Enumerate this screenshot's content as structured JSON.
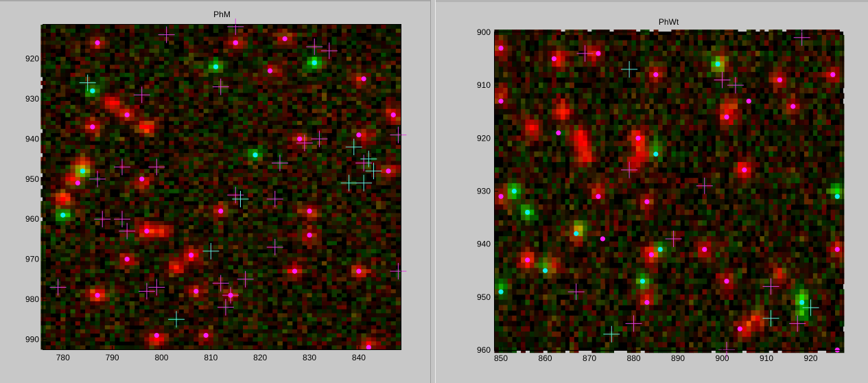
{
  "chart_data": [
    {
      "type": "heatmap",
      "title": "PhM",
      "xlim": [
        776,
        848.5
      ],
      "ylim": [
        992.5,
        911.5
      ],
      "xticks": [
        780,
        790,
        800,
        810,
        820,
        830,
        840
      ],
      "yticks": [
        920,
        930,
        940,
        950,
        960,
        970,
        980,
        990
      ],
      "xtick_labels": [
        "780",
        "790",
        "800",
        "810",
        "820",
        "830",
        "840"
      ],
      "ytick_labels": [
        "920",
        "930",
        "940",
        "950",
        "960",
        "970",
        "980",
        "990"
      ],
      "seed": 7,
      "red_blobs": [
        [
          787,
          916,
          0.7
        ],
        [
          815,
          916,
          0.7
        ],
        [
          825,
          915,
          0.7
        ],
        [
          823,
          923,
          0.7
        ],
        [
          840,
          925,
          0.7
        ],
        [
          786,
          937,
          1.0
        ],
        [
          790,
          931,
          1.2
        ],
        [
          793,
          934,
          1.0
        ],
        [
          797,
          937,
          1.2
        ],
        [
          847,
          934,
          0.9
        ],
        [
          841,
          939,
          0.8
        ],
        [
          828,
          940,
          0.8
        ],
        [
          846,
          948,
          0.8
        ],
        [
          784,
          946,
          1.0
        ],
        [
          782,
          950,
          1.1
        ],
        [
          780,
          955,
          1.2
        ],
        [
          796,
          951,
          0.8
        ],
        [
          812,
          958,
          0.7
        ],
        [
          830,
          958,
          0.8
        ],
        [
          797,
          963,
          1.2
        ],
        [
          800,
          963,
          0.9
        ],
        [
          830,
          964,
          0.8
        ],
        [
          806,
          969,
          1.1
        ],
        [
          803,
          972,
          1.0
        ],
        [
          793,
          970,
          0.8
        ],
        [
          827,
          973,
          0.8
        ],
        [
          840,
          973,
          0.9
        ],
        [
          787,
          979,
          1.3
        ],
        [
          807,
          978,
          0.8
        ],
        [
          814,
          979,
          0.7
        ],
        [
          799,
          990,
          1.2
        ],
        [
          809,
          989,
          0.7
        ],
        [
          842,
          991,
          0.8
        ]
      ],
      "green_blobs": [
        [
          811,
          922,
          1.0
        ],
        [
          831,
          921,
          1.2
        ],
        [
          786,
          928,
          0.8
        ],
        [
          784,
          948,
          1.2
        ],
        [
          819,
          944,
          0.8
        ],
        [
          780,
          959,
          1.0
        ]
      ],
      "magenta_dots": [
        [
          787,
          916
        ],
        [
          815,
          916
        ],
        [
          825,
          915
        ],
        [
          822,
          923
        ],
        [
          841,
          925
        ],
        [
          793,
          934
        ],
        [
          786,
          937
        ],
        [
          847,
          934
        ],
        [
          840,
          939
        ],
        [
          828,
          940
        ],
        [
          846,
          948
        ],
        [
          783,
          951
        ],
        [
          796,
          950
        ],
        [
          812,
          958
        ],
        [
          830,
          958
        ],
        [
          797,
          963
        ],
        [
          830,
          964
        ],
        [
          806,
          969
        ],
        [
          793,
          970
        ],
        [
          827,
          973
        ],
        [
          840,
          973
        ],
        [
          787,
          979
        ],
        [
          807,
          978
        ],
        [
          814,
          979
        ],
        [
          799,
          989
        ],
        [
          809,
          989
        ],
        [
          842,
          992
        ]
      ],
      "cyan_dots": [
        [
          811,
          922
        ],
        [
          831,
          921
        ],
        [
          786,
          928
        ],
        [
          784,
          948
        ],
        [
          819,
          944
        ],
        [
          780,
          959
        ]
      ],
      "magenta_crosses": [
        [
          801,
          914
        ],
        [
          815,
          912
        ],
        [
          831,
          917
        ],
        [
          834,
          918
        ],
        [
          812,
          927
        ],
        [
          796,
          929
        ],
        [
          792,
          947
        ],
        [
          799,
          947
        ],
        [
          787,
          950
        ],
        [
          788,
          960
        ],
        [
          792,
          960
        ],
        [
          793,
          963
        ],
        [
          815,
          954
        ],
        [
          816,
          955
        ],
        [
          823,
          955
        ],
        [
          823,
          967
        ],
        [
          824,
          946
        ],
        [
          829,
          941
        ],
        [
          832,
          940
        ],
        [
          848,
          939
        ],
        [
          841,
          946
        ],
        [
          812,
          976
        ],
        [
          817,
          975
        ],
        [
          779,
          977
        ],
        [
          797,
          978
        ],
        [
          799,
          977
        ],
        [
          814,
          979
        ],
        [
          813,
          982
        ],
        [
          848,
          973
        ]
      ],
      "cyan_crosses": [
        [
          785,
          926
        ],
        [
          839,
          942
        ],
        [
          842,
          945
        ],
        [
          843,
          948
        ],
        [
          838,
          951
        ],
        [
          841,
          951
        ],
        [
          810,
          968
        ],
        [
          803,
          985
        ],
        [
          816,
          955
        ]
      ]
    },
    {
      "type": "heatmap",
      "title": "PhWt",
      "xlim": [
        848.6,
        927.2
      ],
      "ylim": [
        960,
        900
      ],
      "xticks": [
        850,
        860,
        870,
        880,
        890,
        900,
        910,
        920
      ],
      "yticks": [
        900,
        910,
        920,
        930,
        940,
        950,
        960
      ],
      "xtick_labels": [
        "850",
        "860",
        "870",
        "880",
        "890",
        "900",
        "910",
        "920"
      ],
      "ytick_labels": [
        "900",
        "910",
        "920",
        "930",
        "940",
        "950",
        "960"
      ],
      "seed": 13,
      "red_blobs": [
        [
          863,
          905,
          1.1
        ],
        [
          871,
          904,
          0.8
        ],
        [
          864,
          915,
          1.2
        ],
        [
          857,
          918,
          1.1
        ],
        [
          868,
          920,
          1.3
        ],
        [
          869,
          923,
          1.0
        ],
        [
          881,
          920,
          1.0
        ],
        [
          882,
          923,
          0.9
        ],
        [
          913,
          909,
          0.9
        ],
        [
          925,
          908,
          0.8
        ],
        [
          902,
          914,
          0.7
        ],
        [
          885,
          908,
          0.8
        ],
        [
          901,
          916,
          0.8
        ],
        [
          900,
          906,
          0.7
        ],
        [
          905,
          926,
          1.2
        ],
        [
          880,
          925,
          0.7
        ],
        [
          872,
          930,
          0.9
        ],
        [
          883,
          932,
          0.8
        ],
        [
          850,
          931,
          0.8
        ],
        [
          867,
          938,
          0.8
        ],
        [
          884,
          942,
          1.1
        ],
        [
          896,
          941,
          0.8
        ],
        [
          856,
          943,
          1.3
        ],
        [
          862,
          944,
          0.8
        ],
        [
          901,
          947,
          0.8
        ],
        [
          913,
          946,
          0.8
        ],
        [
          883,
          950,
          0.8
        ],
        [
          905,
          956,
          1.0
        ],
        [
          908,
          954,
          0.8
        ],
        [
          926,
          941,
          0.8
        ],
        [
          850,
          912,
          0.8
        ],
        [
          850,
          903,
          0.8
        ],
        [
          916,
          914,
          0.7
        ]
      ],
      "green_blobs": [
        [
          899,
          906,
          1.0
        ],
        [
          853,
          930,
          1.0
        ],
        [
          856,
          934,
          1.0
        ],
        [
          868,
          937,
          0.8
        ],
        [
          860,
          944,
          0.7
        ],
        [
          882,
          947,
          0.8
        ],
        [
          850,
          948,
          0.8
        ],
        [
          918,
          950,
          1.0
        ],
        [
          918,
          953,
          0.8
        ],
        [
          926,
          930,
          0.9
        ],
        [
          885,
          922,
          0.7
        ],
        [
          886,
          941,
          0.7
        ]
      ],
      "magenta_dots": [
        [
          850,
          903
        ],
        [
          862,
          905
        ],
        [
          872,
          904
        ],
        [
          885,
          908
        ],
        [
          913,
          909
        ],
        [
          925,
          908
        ],
        [
          850,
          913
        ],
        [
          906,
          913
        ],
        [
          916,
          914
        ],
        [
          901,
          916
        ],
        [
          863,
          919
        ],
        [
          881,
          920
        ],
        [
          905,
          926
        ],
        [
          850,
          931
        ],
        [
          872,
          931
        ],
        [
          883,
          932
        ],
        [
          873,
          939
        ],
        [
          896,
          941
        ],
        [
          856,
          943
        ],
        [
          884,
          942
        ],
        [
          901,
          947
        ],
        [
          883,
          951
        ],
        [
          904,
          956
        ],
        [
          926,
          941
        ],
        [
          926,
          960
        ]
      ],
      "cyan_dots": [
        [
          899,
          906
        ],
        [
          853,
          930
        ],
        [
          856,
          934
        ],
        [
          867,
          938
        ],
        [
          860,
          945
        ],
        [
          882,
          947
        ],
        [
          850,
          949
        ],
        [
          918,
          951
        ],
        [
          926,
          931
        ],
        [
          885,
          923
        ],
        [
          886,
          941
        ]
      ],
      "magenta_crosses": [
        [
          869,
          904
        ],
        [
          918,
          901
        ],
        [
          900,
          909
        ],
        [
          903,
          910
        ],
        [
          879,
          926
        ],
        [
          896,
          929
        ],
        [
          889,
          939
        ],
        [
          867,
          949
        ],
        [
          880,
          955
        ],
        [
          911,
          948
        ],
        [
          917,
          955
        ],
        [
          901,
          960
        ]
      ],
      "cyan_crosses": [
        [
          879,
          907
        ],
        [
          911,
          954
        ],
        [
          875,
          957
        ],
        [
          920,
          952
        ]
      ]
    }
  ]
}
